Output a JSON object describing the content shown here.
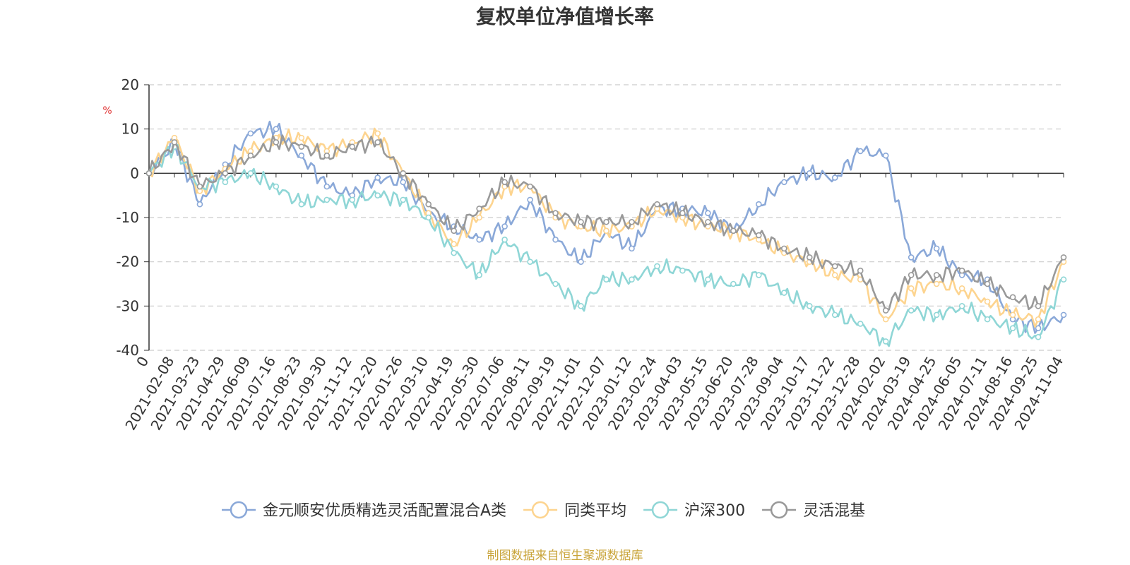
{
  "chart_data": {
    "type": "line",
    "title": "复权单位净值增长率",
    "ylabel": "%",
    "ylim": [
      -40,
      20
    ],
    "yticks": [
      20,
      10,
      0,
      -10,
      -20,
      -30,
      -40
    ],
    "x_tick_labels": [
      "0",
      "2021-02-08",
      "2021-03-23",
      "2021-04-29",
      "2021-06-09",
      "2021-07-16",
      "2021-08-23",
      "2021-09-30",
      "2021-11-12",
      "2021-12-20",
      "2022-01-26",
      "2022-03-10",
      "2022-04-19",
      "2022-05-30",
      "2022-07-06",
      "2022-08-11",
      "2022-09-19",
      "2022-11-01",
      "2022-12-07",
      "2023-01-12",
      "2023-02-24",
      "2023-04-03",
      "2023-05-15",
      "2023-06-20",
      "2023-07-28",
      "2023-09-04",
      "2023-10-17",
      "2023-11-22",
      "2023-12-28",
      "2024-02-02",
      "2024-03-19",
      "2024-04-25",
      "2024-06-05",
      "2024-07-11",
      "2024-08-16",
      "2024-09-25",
      "2024-11-04"
    ],
    "grid": true,
    "legend_position": "bottom",
    "source_note": "制图数据来自恒生聚源数据库",
    "series": [
      {
        "name": "金元顺安优质精选灵活配置混合A类",
        "color": "#8aa8d8",
        "values": [
          0,
          7,
          -7,
          2,
          9,
          10,
          4,
          -3,
          -5,
          -1,
          -2,
          -9,
          -12,
          -15,
          -12,
          -6,
          -15,
          -20,
          -13,
          -17,
          -8,
          -8,
          -9,
          -13,
          -7,
          -2,
          0,
          -1,
          5,
          4,
          -19,
          -17,
          -23,
          -24,
          -33,
          -35,
          -32
        ]
      },
      {
        "name": "同类平均",
        "color": "#fdd48f",
        "values": [
          0,
          8,
          -4,
          1,
          5,
          8,
          8,
          5,
          7,
          9,
          0,
          -9,
          -16,
          -10,
          -3,
          -3,
          -10,
          -12,
          -13,
          -12,
          -8,
          -10,
          -12,
          -13,
          -15,
          -18,
          -20,
          -23,
          -24,
          -33,
          -26,
          -25,
          -26,
          -29,
          -32,
          -33,
          -20
        ]
      },
      {
        "name": "沪深300",
        "color": "#8fd6d6",
        "values": [
          0,
          6,
          -3,
          -2,
          0,
          -3,
          -7,
          -6,
          -6,
          -5,
          -6,
          -10,
          -18,
          -23,
          -15,
          -20,
          -25,
          -30,
          -24,
          -24,
          -21,
          -22,
          -24,
          -25,
          -23,
          -27,
          -30,
          -32,
          -34,
          -38,
          -31,
          -32,
          -30,
          -33,
          -35,
          -37,
          -24
        ]
      },
      {
        "name": "灵活混基",
        "color": "#999999",
        "values": [
          0,
          7,
          -3,
          0,
          4,
          7,
          6,
          4,
          6,
          7,
          0,
          -7,
          -13,
          -8,
          -2,
          -3,
          -9,
          -11,
          -11,
          -11,
          -7,
          -9,
          -11,
          -13,
          -14,
          -17,
          -19,
          -21,
          -22,
          -31,
          -23,
          -23,
          -22,
          -25,
          -28,
          -30,
          -19
        ]
      }
    ]
  }
}
